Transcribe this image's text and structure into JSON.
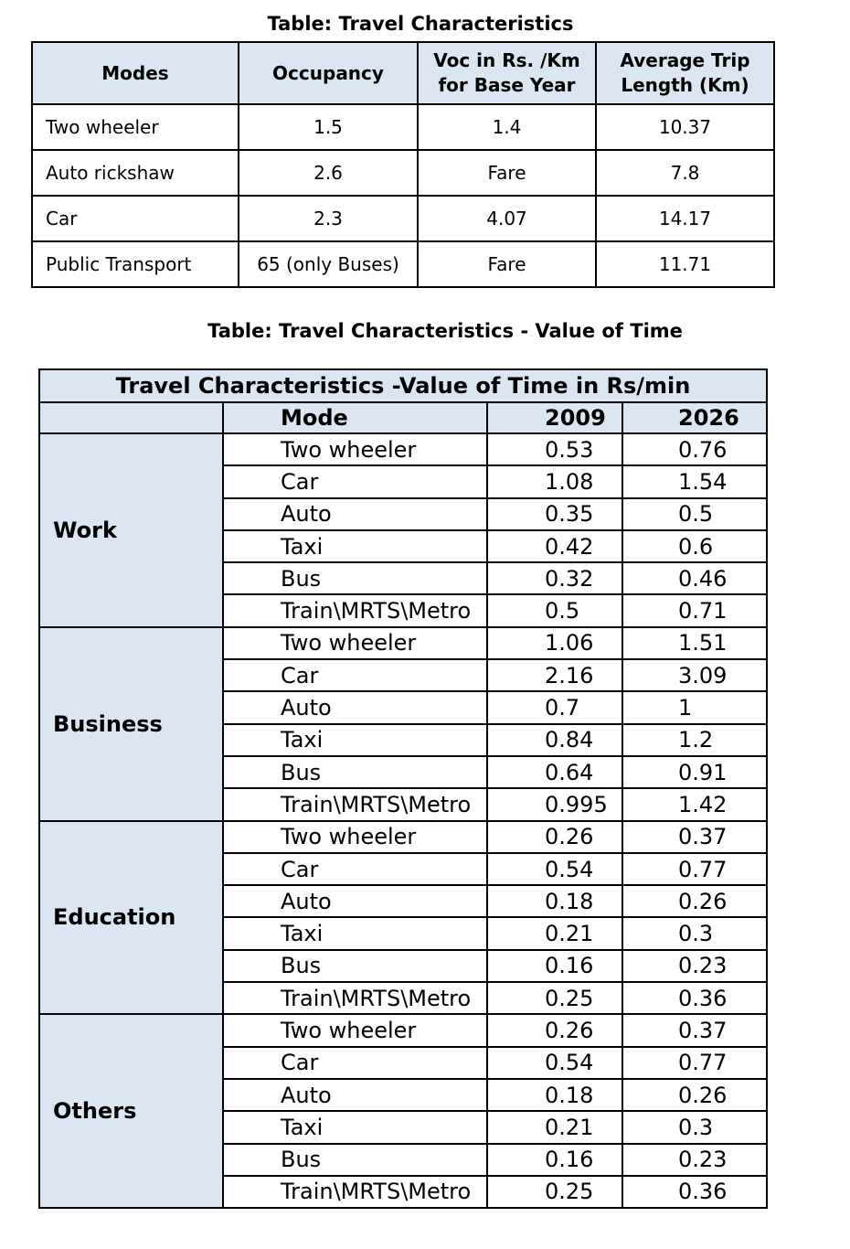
{
  "table1": {
    "caption": "Table: Travel Characteristics",
    "headers": [
      "Modes",
      "Occupancy",
      "Voc in Rs. /Km for Base Year",
      "Average Trip Length (Km)"
    ],
    "rows": [
      [
        "Two wheeler",
        "1.5",
        "1.4",
        "10.37"
      ],
      [
        "Auto rickshaw",
        "2.6",
        "Fare",
        "7.8"
      ],
      [
        "Car",
        "2.3",
        "4.07",
        "14.17"
      ],
      [
        "Public Transport",
        "65 (only Buses)",
        "Fare",
        "11.71"
      ]
    ]
  },
  "table2": {
    "caption": "Table: Travel Characteristics - Value of Time",
    "title": "Travel Characteristics -Value of Time in Rs/min",
    "col_headers": [
      "Mode",
      "2009",
      "2026"
    ],
    "groups": [
      {
        "purpose": "Work",
        "rows": [
          [
            "Two wheeler",
            "0.53",
            "0.76"
          ],
          [
            "Car",
            "1.08",
            "1.54"
          ],
          [
            "Auto",
            "0.35",
            "0.5"
          ],
          [
            "Taxi",
            "0.42",
            "0.6"
          ],
          [
            "Bus",
            "0.32",
            "0.46"
          ],
          [
            "Train\\MRTS\\Metro",
            "0.5",
            "0.71"
          ]
        ]
      },
      {
        "purpose": "Business",
        "rows": [
          [
            "Two wheeler",
            "1.06",
            "1.51"
          ],
          [
            "Car",
            "2.16",
            "3.09"
          ],
          [
            "Auto",
            "0.7",
            "1"
          ],
          [
            "Taxi",
            "0.84",
            "1.2"
          ],
          [
            "Bus",
            "0.64",
            "0.91"
          ],
          [
            "Train\\MRTS\\Metro",
            "0.995",
            "1.42"
          ]
        ]
      },
      {
        "purpose": "Education",
        "rows": [
          [
            "Two wheeler",
            "0.26",
            "0.37"
          ],
          [
            "Car",
            "0.54",
            "0.77"
          ],
          [
            "Auto",
            "0.18",
            "0.26"
          ],
          [
            "Taxi",
            "0.21",
            "0.3"
          ],
          [
            "Bus",
            "0.16",
            "0.23"
          ],
          [
            "Train\\MRTS\\Metro",
            "0.25",
            "0.36"
          ]
        ]
      },
      {
        "purpose": "Others",
        "rows": [
          [
            "Two wheeler",
            "0.26",
            "0.37"
          ],
          [
            "Car",
            "0.54",
            "0.77"
          ],
          [
            "Auto",
            "0.18",
            "0.26"
          ],
          [
            "Taxi",
            "0.21",
            "0.3"
          ],
          [
            "Bus",
            "0.16",
            "0.23"
          ],
          [
            "Train\\MRTS\\Metro",
            "0.25",
            "0.36"
          ]
        ]
      }
    ]
  }
}
